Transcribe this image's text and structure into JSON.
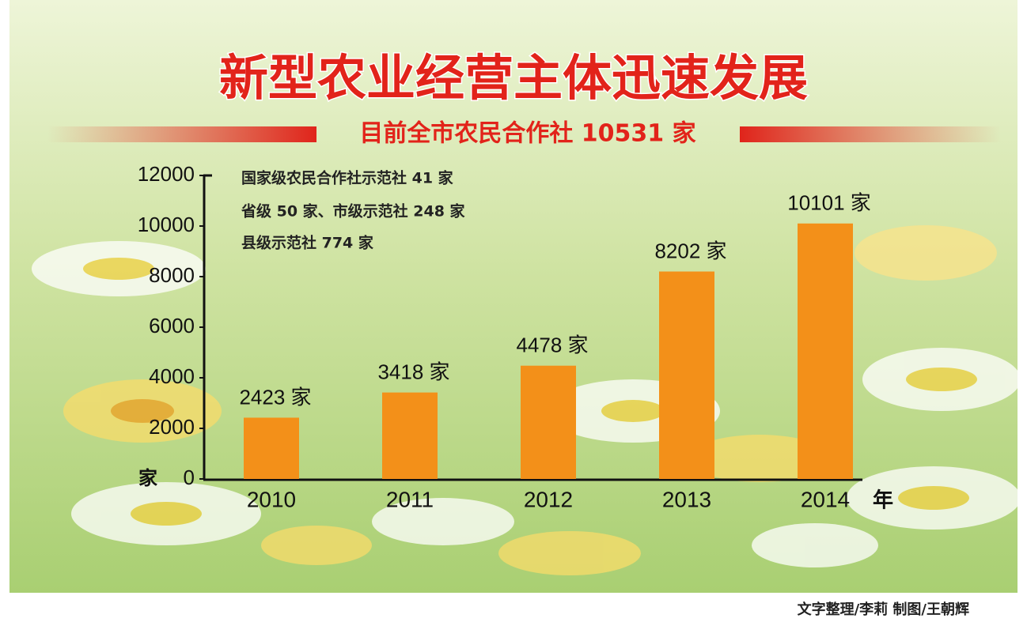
{
  "chart_data": {
    "type": "bar",
    "title": "新型农业经营主体迅速发展",
    "subtitle": "目前全市农民合作社 10531 家",
    "annotations": [
      "国家级农民合作社示范社 41 家",
      "省级 50 家、市级示范社 248 家",
      "县级示范社 774 家"
    ],
    "y_unit": "家",
    "x_unit": "年",
    "categories": [
      "2010",
      "2011",
      "2012",
      "2013",
      "2014"
    ],
    "values": [
      2423,
      3418,
      4478,
      8202,
      10101
    ],
    "value_labels": [
      "2423 家",
      "3418 家",
      "4478 家",
      "8202 家",
      "10101 家"
    ],
    "color": "#f39019",
    "ylim": [
      0,
      12000
    ],
    "yticks": [
      0,
      2000,
      4000,
      6000,
      8000,
      10000,
      12000
    ],
    "credit": "文字整理/李莉  制图/王朝辉"
  }
}
